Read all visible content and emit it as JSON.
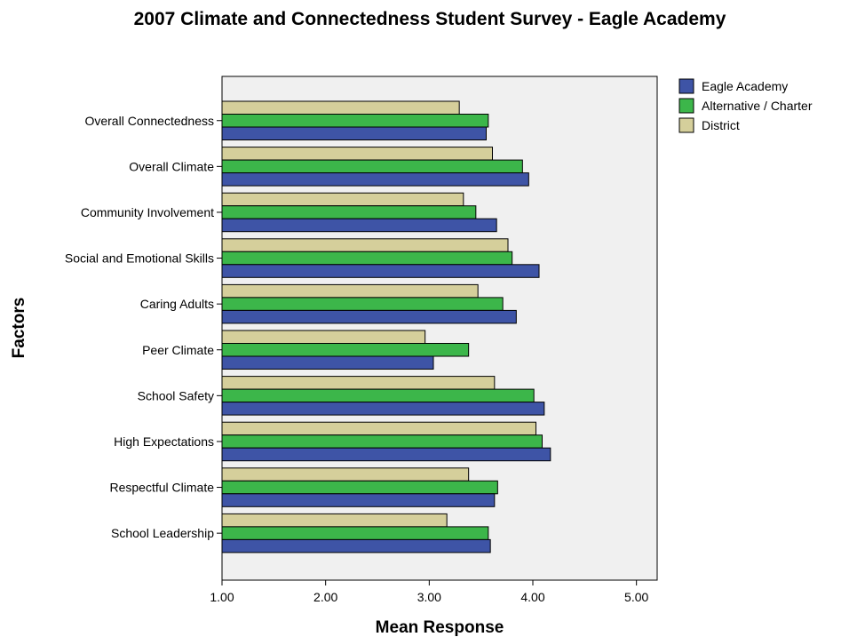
{
  "chart_data": {
    "type": "bar",
    "orientation": "horizontal",
    "title": "2007 Climate and Connectedness Student Survey - Eagle Academy",
    "xlabel": "Mean Response",
    "ylabel": "Factors",
    "xlim": [
      1.0,
      5.2
    ],
    "xticks": [
      "1.00",
      "2.00",
      "3.00",
      "4.00",
      "5.00"
    ],
    "xtick_values": [
      1,
      2,
      3,
      4,
      5
    ],
    "grid": false,
    "legend_position": "top-right",
    "categories": [
      "Overall Connectedness",
      "Overall Climate",
      "Community Involvement",
      "Social and Emotional Skills",
      "Caring Adults",
      "Peer Climate",
      "School Safety",
      "High Expectations",
      "Respectful Climate",
      "School Leadership"
    ],
    "series": [
      {
        "name": "Eagle Academy",
        "color": "#3e54a6",
        "values": [
          3.55,
          3.96,
          3.65,
          4.06,
          3.84,
          3.04,
          4.11,
          4.17,
          3.63,
          3.59
        ]
      },
      {
        "name": "Alternative / Charter",
        "color": "#3cb64a",
        "values": [
          3.57,
          3.9,
          3.45,
          3.8,
          3.71,
          3.38,
          4.01,
          4.09,
          3.66,
          3.57
        ]
      },
      {
        "name": "District",
        "color": "#d5cf9b",
        "values": [
          3.29,
          3.61,
          3.33,
          3.76,
          3.47,
          2.96,
          3.63,
          4.03,
          3.38,
          3.17
        ]
      }
    ],
    "plot_background": "#f0f0f0"
  }
}
